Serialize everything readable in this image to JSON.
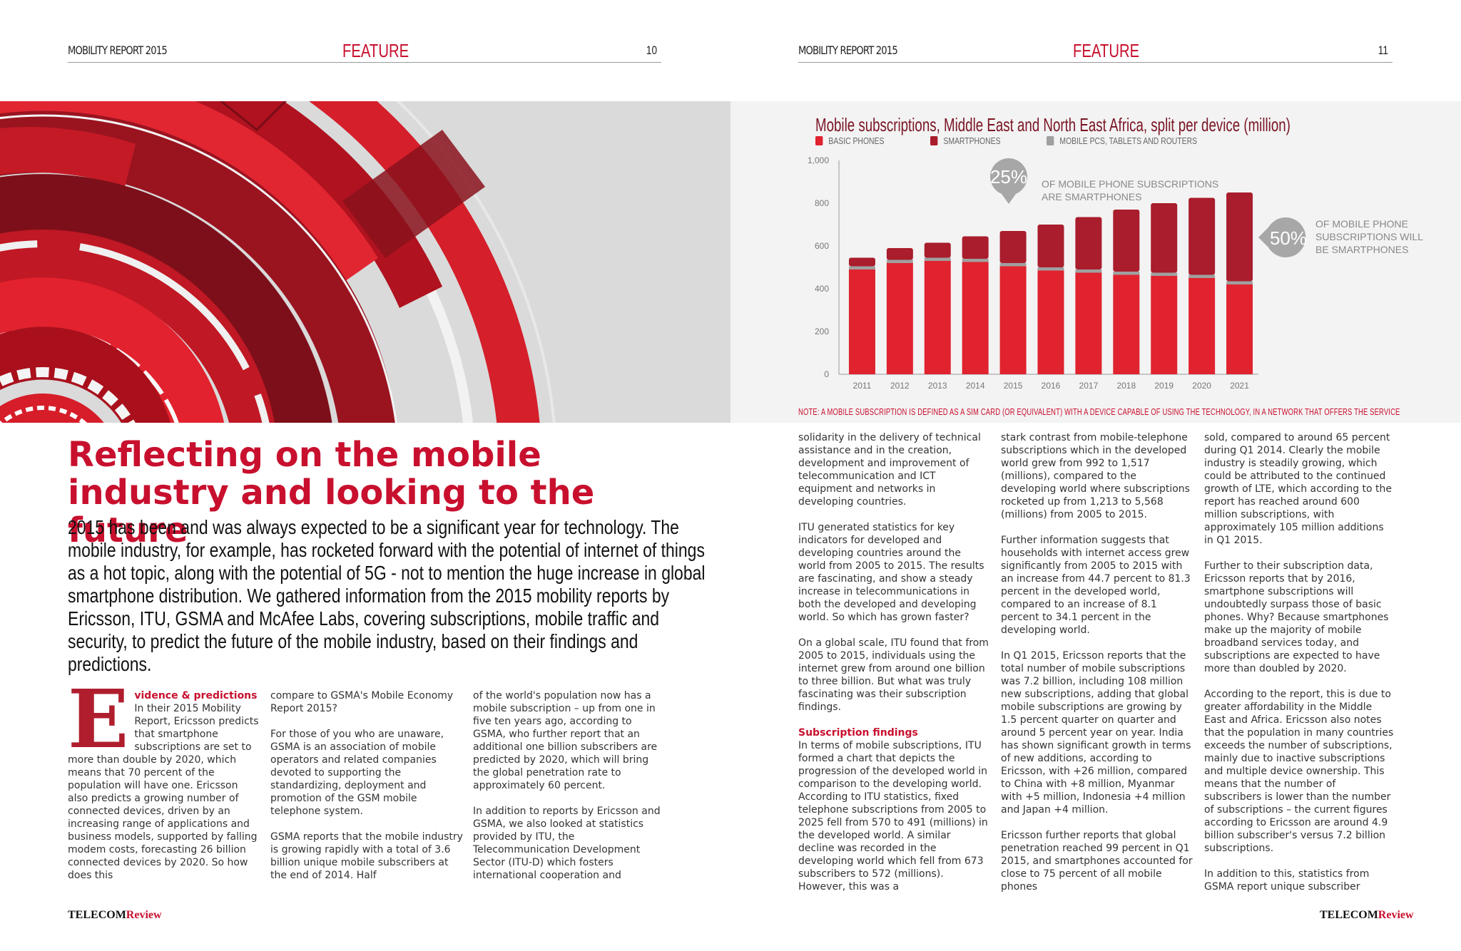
{
  "left_page": {
    "header": {
      "publication": "MOBILITY REPORT 2015",
      "section": "FEATURE",
      "page_number": "10"
    },
    "headline": "Reflecting on the mobile industry and looking to the future",
    "standfirst": "2015 has been and was always expected to be a significant year for technology. The mobile industry, for example, has rocketed forward with the potential of internet of things as a hot topic, along with the potential of 5G - not to mention the huge increase in global smartphone distribution. We gathered information from the 2015 mobility reports by Ericsson, ITU, GSMA and McAfee Labs, covering subscriptions, mobile traffic and security, to predict the future of the mobile industry, based on their findings and predictions.",
    "col1": {
      "drop_cap": "E",
      "subhead": "vidence & predictions",
      "text": "In their 2015 Mobility Report, Ericsson predicts that smartphone subscriptions are set to more than double by 2020, which means that 70 percent of the population will have one. Ericsson also predicts a growing number of connected devices, driven by an increasing range of applications and business models, supported by falling modem costs, forecasting 26 billion connected devices by 2020. So how does this"
    },
    "col2": {
      "p1": "compare to GSMA's Mobile Economy Report 2015?",
      "p2": "For those of you who are unaware, GSMA is an association of mobile operators and related companies devoted to supporting the standardizing, deployment and promotion of the GSM mobile telephone system.",
      "p3": "GSMA reports that the mobile industry is growing rapidly with a total of 3.6 billion unique mobile subscribers at the end of 2014. Half"
    },
    "col3": {
      "p1": "of the world's population now has a mobile subscription – up from one in five ten years ago, according to GSMA, who further report that an additional one billion subscribers are predicted by 2020, which will bring the global penetration rate to approximately 60 percent.",
      "p2": "In addition to reports by Ericsson and GSMA, we also looked at statistics provided by ITU, the Telecommunication Development Sector (ITU-D) which fosters international cooperation and"
    },
    "footer": {
      "brand_a": "TELECOM",
      "brand_b": "Review"
    }
  },
  "right_page": {
    "header": {
      "publication": "MOBILITY REPORT 2015",
      "section": "FEATURE",
      "page_number": "11"
    },
    "col1": {
      "p1": "solidarity in the delivery of technical assistance and in the creation, development and improvement of telecommunication and ICT equipment and networks in developing countries.",
      "p2": "ITU generated statistics for key indicators for developed and developing countries around the world from 2005 to 2015. The results are fascinating, and show a steady increase in telecommunications in both the developed and developing world. So which has grown faster?",
      "p3": "On a global scale, ITU found that from 2005 to 2015, individuals using the internet grew from around one billion to three billion. But what was truly fascinating was their subscription findings.",
      "subhead": "Subscription findings",
      "p4": "In terms of mobile subscriptions, ITU formed a chart that depicts the progression of the developed world in comparison to the developing world. According to ITU statistics, fixed telephone subscriptions from 2005 to 2025 fell from 570 to 491 (millions) in the developed world. A similar decline was recorded in the developing world which fell from 673 subscribers to 572 (millions). However, this was a"
    },
    "col2": {
      "p1": "stark contrast from mobile-telephone subscriptions which in the developed world grew from 992 to 1,517 (millions), compared to the developing world where subscriptions rocketed up from 1,213 to 5,568 (millions) from 2005 to 2015.",
      "p2": "Further information suggests that households with internet access grew significantly from 2005 to 2015 with an increase from 44.7 percent to 81.3 percent in the developed world, compared to an increase of 8.1 percent to 34.1 percent in the developing world.",
      "p3": "In Q1 2015, Ericsson reports that the total number of mobile subscriptions was 7.2 billion, including 108 million new subscriptions, adding that global mobile subscriptions are growing by 1.5 percent quarter on quarter and around 5 percent year on year. India has shown significant growth in terms of new additions, according to Ericsson, with +26 million, compared to China with +8 million, Myanmar with +5 million, Indonesia +4 million and Japan +4 million.",
      "p4": "Ericsson further reports that global penetration reached 99 percent in Q1 2015, and smartphones accounted for close to 75 percent of all mobile phones"
    },
    "col3": {
      "p1": "sold, compared to around 65 percent during Q1 2014. Clearly the mobile industry is steadily growing, which could be attributed to the continued growth of LTE, which according to the report has reached around 600 million subscriptions, with approximately 105 million additions in Q1 2015.",
      "p2": "Further to their subscription data, Ericsson reports that by 2016, smartphone subscriptions will undoubtedly surpass those of basic phones. Why? Because smartphones make up the majority of mobile broadband services today, and subscriptions are expected to have more than doubled by 2020.",
      "p3": "According to the report, this is due to greater affordability in the Middle East and Africa. Ericsson also notes that the population in many countries exceeds the number of subscriptions, mainly due to inactive subscriptions and multiple device ownership. This means that the number of subscribers is lower than the number of subscriptions – the current figures according to Ericsson are around 4.9 billion subscriber's versus 7.2 billion subscriptions.",
      "p4": "In addition to this, statistics from GSMA report unique subscriber"
    },
    "footer": {
      "brand_a": "TELECOM",
      "brand_b": "Review"
    }
  },
  "chart_data": {
    "type": "bar",
    "title": "Mobile subscriptions, Middle East and North East Africa, split per device (million)",
    "categories": [
      "2011",
      "2012",
      "2013",
      "2014",
      "2015",
      "2016",
      "2017",
      "2018",
      "2019",
      "2020",
      "2021"
    ],
    "series": [
      {
        "name": "BASIC PHONES",
        "color": "#e0232f",
        "values": [
          490,
          520,
          530,
          525,
          505,
          485,
          475,
          465,
          460,
          450,
          420
        ]
      },
      {
        "name": "MOBILE PCS, TABLETS AND ROUTERS",
        "color": "#a0a0a0",
        "values": [
          15,
          15,
          15,
          15,
          15,
          15,
          15,
          15,
          15,
          15,
          15
        ]
      },
      {
        "name": "SMARTPHONES",
        "color": "#a91d2c",
        "values": [
          40,
          55,
          70,
          105,
          150,
          200,
          245,
          290,
          325,
          360,
          415
        ]
      }
    ],
    "legend_order": [
      "BASIC PHONES",
      "SMARTPHONES",
      "MOBILE PCS, TABLETS AND ROUTERS"
    ],
    "ylim": [
      0,
      1000
    ],
    "yticks": [
      "0",
      "200",
      "400",
      "600",
      "800",
      "1,000"
    ],
    "annotations": [
      {
        "value": "25%",
        "text_line1": "OF MOBILE PHONE SUBSCRIPTIONS",
        "text_line2": "ARE SMARTPHONES"
      },
      {
        "value": "50%",
        "text_line1": "OF MOBILE PHONE",
        "text_line2": "SUBSCRIPTIONS WILL",
        "text_line3": "BE SMARTPHONES"
      }
    ],
    "note": "NOTE: A MOBILE SUBSCRIPTION IS DEFINED AS A SIM CARD (OR EQUIVALENT) WITH A DEVICE CAPABLE OF USING THE TECHNOLOGY, IN A NETWORK THAT OFFERS THE SERVICE"
  }
}
